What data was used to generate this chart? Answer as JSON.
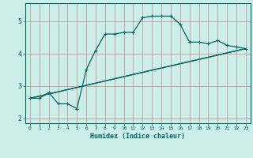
{
  "xlabel": "Humidex (Indice chaleur)",
  "bg_color": "#cceee8",
  "grid_color": "#cc8888",
  "line_color": "#006666",
  "xlim": [
    -0.5,
    23.5
  ],
  "ylim": [
    1.85,
    5.55
  ],
  "xticks": [
    0,
    1,
    2,
    3,
    4,
    5,
    6,
    7,
    8,
    9,
    10,
    11,
    12,
    13,
    14,
    15,
    16,
    17,
    18,
    19,
    20,
    21,
    22,
    23
  ],
  "yticks": [
    2,
    3,
    4,
    5
  ],
  "curve_x": [
    0,
    1,
    2,
    3,
    4,
    5,
    6,
    7,
    8,
    9,
    10,
    11,
    12,
    13,
    14,
    15,
    16,
    17,
    18,
    19,
    20,
    21,
    22,
    23
  ],
  "curve_y": [
    2.62,
    2.62,
    2.8,
    2.45,
    2.45,
    2.3,
    3.5,
    4.1,
    4.6,
    4.6,
    4.65,
    4.65,
    5.1,
    5.15,
    5.15,
    5.15,
    4.9,
    4.35,
    4.35,
    4.3,
    4.4,
    4.25,
    4.2,
    4.15
  ],
  "line1_x": [
    0,
    23
  ],
  "line1_y": [
    2.62,
    4.15
  ],
  "line2_x": [
    0,
    23
  ],
  "line2_y": [
    2.62,
    4.15
  ]
}
